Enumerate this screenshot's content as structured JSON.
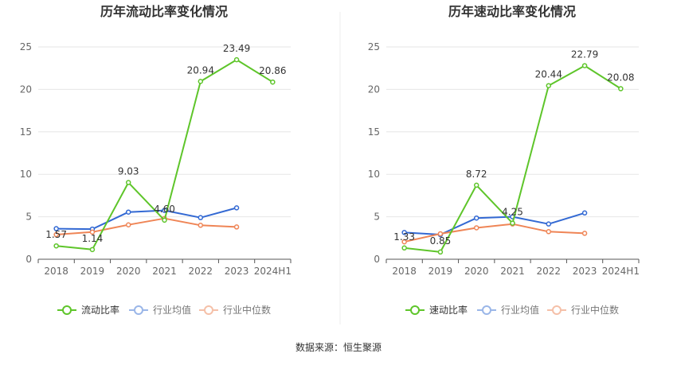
{
  "source": "数据来源：恒生聚源",
  "colors": {
    "main": "#5ec52a",
    "avg": "#3369d3",
    "median": "#ef8556",
    "legend_avg": "#9ab6e8",
    "legend_median": "#f5c0a8",
    "grid": "#e6e6e6",
    "axis": "#555555"
  },
  "chart_data": [
    {
      "type": "line",
      "title": "历年流动比率变化情况",
      "categories": [
        "2018",
        "2019",
        "2020",
        "2021",
        "2022",
        "2023",
        "2024H1"
      ],
      "ylim": [
        0,
        25
      ],
      "yticks": [
        "0",
        "5",
        "10",
        "15",
        "20",
        "25"
      ],
      "grid": true,
      "legend_position": "bottom",
      "series": [
        {
          "name": "流动比率",
          "values": [
            1.57,
            1.14,
            9.03,
            4.6,
            20.94,
            23.49,
            20.86
          ],
          "labels": [
            "1.57",
            "1.14",
            "9.03",
            "4.60",
            "20.94",
            "23.49",
            "20.86"
          ]
        },
        {
          "name": "行业均值",
          "values": [
            3.6,
            3.55,
            5.55,
            5.75,
            4.9,
            6.05,
            null
          ]
        },
        {
          "name": "行业中位数",
          "values": [
            2.9,
            3.2,
            4.05,
            4.8,
            4.0,
            3.8,
            null
          ]
        }
      ]
    },
    {
      "type": "line",
      "title": "历年速动比率变化情况",
      "categories": [
        "2018",
        "2019",
        "2020",
        "2021",
        "2022",
        "2023",
        "2024H1"
      ],
      "ylim": [
        0,
        25
      ],
      "yticks": [
        "0",
        "5",
        "10",
        "15",
        "20",
        "25"
      ],
      "grid": true,
      "legend_position": "bottom",
      "series": [
        {
          "name": "速动比率",
          "values": [
            1.33,
            0.85,
            8.72,
            4.25,
            20.44,
            22.79,
            20.08
          ],
          "labels": [
            "1.33",
            "0.85",
            "8.72",
            "4.25",
            "20.44",
            "22.79",
            "20.08"
          ]
        },
        {
          "name": "行业均值",
          "values": [
            3.15,
            2.9,
            4.85,
            5.0,
            4.15,
            5.45,
            null
          ]
        },
        {
          "name": "行业中位数",
          "values": [
            2.05,
            3.0,
            3.7,
            4.15,
            3.25,
            3.05,
            null
          ]
        }
      ]
    }
  ]
}
